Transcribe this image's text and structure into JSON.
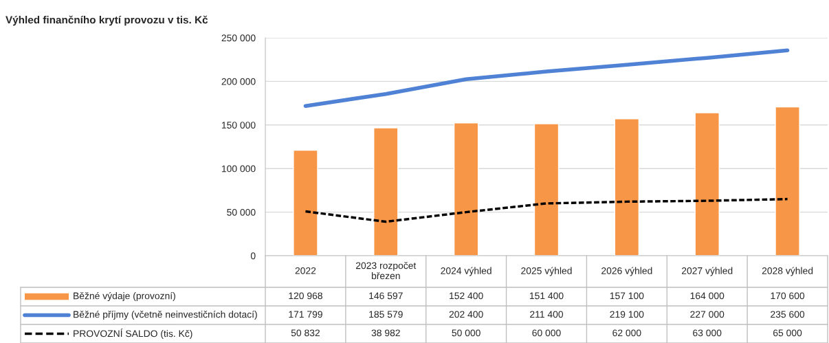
{
  "chart_data": {
    "type": "bar",
    "title": "Výhled finančního krytí provozu v tis. Kč",
    "categories": [
      "2022",
      "2023 rozpočet březen",
      "2024 výhled",
      "2025 výhled",
      "2026 výhled",
      "2027 výhled",
      "2028 výhled"
    ],
    "series": [
      {
        "name": "Běžné výdaje (provozní)",
        "color": "#f79646",
        "values": [
          120968,
          146597,
          152400,
          151400,
          157100,
          164000,
          170600
        ],
        "value_labels": [
          "120 968",
          "146 597",
          "152 400",
          "151 400",
          "157 100",
          "164 000",
          "170 600"
        ]
      },
      {
        "name": "Běžné příjmy (včetně neinvestičních dotací)",
        "type": "line",
        "line_style": "solid",
        "color": "#4f81d5",
        "values": [
          171799,
          185579,
          202400,
          211400,
          219100,
          227000,
          235600
        ],
        "value_labels": [
          "171 799",
          "185 579",
          "202 400",
          "211 400",
          "219 100",
          "227 000",
          "235 600"
        ]
      },
      {
        "name": "PROVOZNÍ SALDO (tis. Kč)",
        "type": "line",
        "line_style": "dashed",
        "color": "#000000",
        "values": [
          50832,
          38982,
          50000,
          60000,
          62000,
          63000,
          65000
        ],
        "value_labels": [
          "50 832",
          "38 982",
          "50 000",
          "60 000",
          "62 000",
          "63 000",
          "65 000"
        ]
      }
    ],
    "ylim": [
      0,
      250000
    ],
    "yticks": [
      0,
      {
        "value": 50000,
        "label": "50 000"
      },
      {
        "value": 100000,
        "label": "100 000"
      },
      {
        "value": 150000,
        "label": "150 000"
      },
      {
        "value": 200000,
        "label": "200 000"
      },
      {
        "value": 250000,
        "label": "250 000"
      }
    ],
    "grid": "y",
    "legend": "bottom"
  }
}
